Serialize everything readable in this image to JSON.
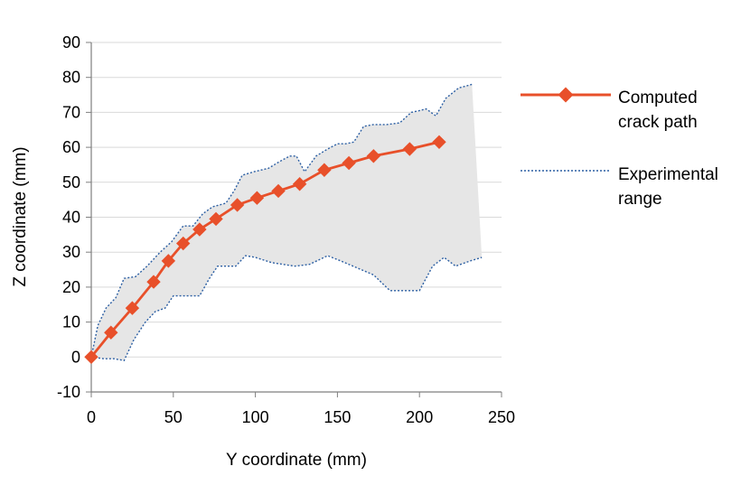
{
  "chart_data": {
    "type": "line",
    "title": "",
    "xlabel": "Y coordinate (mm)",
    "ylabel": "Z coordinate (mm)",
    "xlim": [
      0,
      250
    ],
    "ylim": [
      -10,
      90
    ],
    "xticks": [
      0,
      50,
      100,
      150,
      200,
      250
    ],
    "yticks": [
      -10,
      0,
      10,
      20,
      30,
      40,
      50,
      60,
      70,
      80,
      90
    ],
    "grid": true,
    "legend_position": "right",
    "colors": {
      "computed": "#e8502a",
      "experimental": "#2c5fa3",
      "band_fill": "#e6e6e6",
      "grid": "#d9d9d9",
      "axis": "#7f7f7f"
    },
    "series": [
      {
        "name": "Computed crack path",
        "legend_lines": [
          "Computed",
          "crack path"
        ],
        "style": "line-diamond",
        "x": [
          0,
          12,
          25,
          38,
          47,
          56,
          66,
          76,
          89,
          101,
          114,
          127,
          142,
          157,
          172,
          194,
          212
        ],
        "y": [
          0,
          7,
          14,
          21.5,
          27.5,
          32.5,
          36.5,
          39.5,
          43.5,
          45.5,
          47.5,
          49.5,
          53.5,
          55.5,
          57.5,
          59.5,
          61.5
        ]
      },
      {
        "name": "Experimental range",
        "legend_lines": [
          "Experimental",
          "range"
        ],
        "style": "dotted-band",
        "upper": {
          "x": [
            0,
            4,
            9,
            15,
            20,
            27,
            34,
            42,
            49,
            56,
            62,
            68,
            74,
            82,
            87,
            92,
            99,
            108,
            115,
            121,
            125,
            130,
            137,
            144,
            150,
            155,
            160,
            166,
            172,
            180,
            188,
            195,
            200,
            204,
            210,
            216,
            224,
            232
          ],
          "y": [
            0,
            9,
            14,
            17,
            22.5,
            23,
            26,
            30,
            33,
            37.5,
            37.5,
            41,
            43,
            44,
            47.5,
            52,
            53,
            54,
            56,
            57.5,
            57.5,
            53,
            57.5,
            59.5,
            61,
            61,
            61.5,
            66,
            66.5,
            66.5,
            67,
            70,
            70.5,
            71,
            69,
            74,
            77,
            78
          ]
        },
        "lower": {
          "x": [
            0,
            8,
            14,
            20,
            26,
            33,
            39,
            45,
            50,
            54,
            58,
            66,
            72,
            77,
            82,
            88,
            94,
            100,
            110,
            124,
            133,
            144,
            152,
            162,
            172,
            182,
            190,
            197,
            200,
            208,
            215,
            222,
            231,
            238
          ],
          "y": [
            0,
            -0.5,
            -0.5,
            -1,
            5,
            10,
            13,
            14,
            17.5,
            17.5,
            17.5,
            17.5,
            22.5,
            26,
            26,
            26,
            29,
            28.5,
            27,
            26,
            26.5,
            29,
            27.5,
            25.5,
            23.5,
            19,
            19,
            19,
            19,
            26,
            28.5,
            26,
            27.5,
            28.5
          ]
        }
      }
    ]
  }
}
